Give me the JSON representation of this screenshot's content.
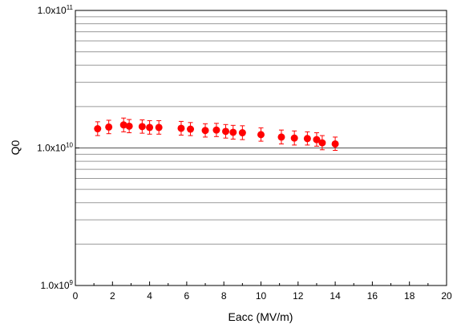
{
  "chart_data": {
    "type": "scatter",
    "title": "",
    "xlabel": "Eacc (MV/m)",
    "ylabel": "Q0",
    "xlim": [
      0,
      20
    ],
    "ylim": [
      1000000000,
      100000000000
    ],
    "yscale": "log",
    "grid": "horizontal",
    "x_ticks": [
      "0",
      "2",
      "4",
      "6",
      "8",
      "10",
      "12",
      "14",
      "16",
      "18",
      "20"
    ],
    "y_ticks": [
      {
        "base": "1.0x10",
        "exp": "9"
      },
      {
        "base": "1.0x10",
        "exp": "10"
      },
      {
        "base": "1.0x10",
        "exp": "11"
      }
    ],
    "marker_color": "#ff0000",
    "series": [
      {
        "points": [
          {
            "x": 1.2,
            "y": 13800000000,
            "err_low": 1500000000,
            "err_high": 1700000000
          },
          {
            "x": 1.8,
            "y": 14200000000,
            "err_low": 1500000000,
            "err_high": 1700000000
          },
          {
            "x": 2.6,
            "y": 14700000000,
            "err_low": 1600000000,
            "err_high": 1800000000
          },
          {
            "x": 2.9,
            "y": 14400000000,
            "err_low": 1500000000,
            "err_high": 1700000000
          },
          {
            "x": 3.6,
            "y": 14300000000,
            "err_low": 1500000000,
            "err_high": 1700000000
          },
          {
            "x": 4.0,
            "y": 14100000000,
            "err_low": 1500000000,
            "err_high": 1700000000
          },
          {
            "x": 4.5,
            "y": 14100000000,
            "err_low": 1500000000,
            "err_high": 1700000000
          },
          {
            "x": 5.7,
            "y": 13900000000,
            "err_low": 1500000000,
            "err_high": 1700000000
          },
          {
            "x": 6.2,
            "y": 13700000000,
            "err_low": 1400000000,
            "err_high": 1600000000
          },
          {
            "x": 7.0,
            "y": 13400000000,
            "err_low": 1400000000,
            "err_high": 1600000000
          },
          {
            "x": 7.6,
            "y": 13500000000,
            "err_low": 1400000000,
            "err_high": 1600000000
          },
          {
            "x": 8.1,
            "y": 13200000000,
            "err_low": 1400000000,
            "err_high": 1600000000
          },
          {
            "x": 8.5,
            "y": 13000000000,
            "err_low": 1400000000,
            "err_high": 1600000000
          },
          {
            "x": 9.0,
            "y": 12900000000,
            "err_low": 1400000000,
            "err_high": 1600000000
          },
          {
            "x": 10.0,
            "y": 12500000000,
            "err_low": 1300000000,
            "err_high": 1500000000
          },
          {
            "x": 11.1,
            "y": 12000000000,
            "err_low": 1300000000,
            "err_high": 1500000000
          },
          {
            "x": 11.8,
            "y": 11800000000,
            "err_low": 1300000000,
            "err_high": 1500000000
          },
          {
            "x": 12.5,
            "y": 11700000000,
            "err_low": 1200000000,
            "err_high": 1400000000
          },
          {
            "x": 13.0,
            "y": 11500000000,
            "err_low": 1200000000,
            "err_high": 1400000000
          },
          {
            "x": 13.3,
            "y": 10900000000,
            "err_low": 1200000000,
            "err_high": 1400000000
          },
          {
            "x": 14.0,
            "y": 10700000000,
            "err_low": 1100000000,
            "err_high": 1300000000
          }
        ]
      }
    ]
  }
}
